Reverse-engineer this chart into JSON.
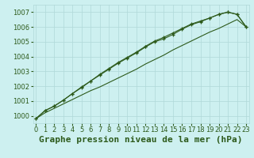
{
  "title": "Graphe pression niveau de la mer (hPa)",
  "bg_color": "#cdf0f0",
  "grid_color": "#b0d8d8",
  "line_color": "#2d5a1b",
  "ylim": [
    999.5,
    1007.5
  ],
  "xlim": [
    -0.3,
    23.3
  ],
  "yticks": [
    1000,
    1001,
    1002,
    1003,
    1004,
    1005,
    1006,
    1007
  ],
  "xticks": [
    0,
    1,
    2,
    3,
    4,
    5,
    6,
    7,
    8,
    9,
    10,
    11,
    12,
    13,
    14,
    15,
    16,
    17,
    18,
    19,
    20,
    21,
    22,
    23
  ],
  "upper": [
    999.8,
    1000.35,
    1000.65,
    1001.05,
    1001.5,
    1001.9,
    1002.35,
    1002.75,
    1003.15,
    1003.55,
    1003.9,
    1004.25,
    1004.65,
    1005.0,
    1005.2,
    1005.5,
    1005.85,
    1006.15,
    1006.35,
    1006.6,
    1006.85,
    1007.0,
    1006.85,
    1006.0
  ],
  "lower": [
    999.8,
    1000.2,
    1000.5,
    1000.8,
    1001.1,
    1001.4,
    1001.7,
    1001.95,
    1002.25,
    1002.55,
    1002.85,
    1003.15,
    1003.5,
    1003.8,
    1004.1,
    1004.45,
    1004.75,
    1005.05,
    1005.35,
    1005.65,
    1005.9,
    1006.2,
    1006.5,
    1006.0
  ],
  "middle": [
    999.8,
    1000.35,
    1000.65,
    1001.05,
    1001.5,
    1001.95,
    1002.35,
    1002.8,
    1003.2,
    1003.6,
    1003.95,
    1004.3,
    1004.7,
    1005.05,
    1005.3,
    1005.6,
    1005.9,
    1006.2,
    1006.4,
    1006.6,
    1006.85,
    1007.0,
    1006.85,
    1006.0
  ],
  "title_fontsize": 8,
  "tick_fontsize": 6
}
